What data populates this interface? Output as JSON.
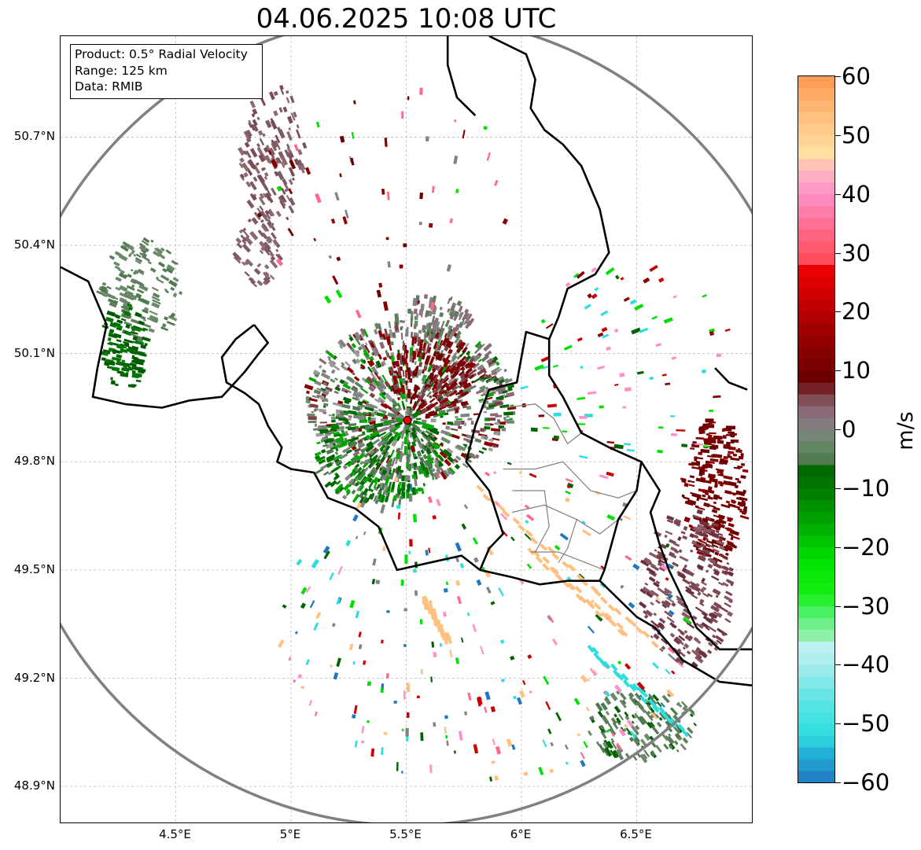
{
  "title": "04.06.2025 10:08 UTC",
  "info_box": {
    "product": "Product: 0.5° Radial Velocity",
    "range": "Range: 125 km",
    "data": "Data: RMIB"
  },
  "map": {
    "lon_range": [
      4.0,
      7.0
    ],
    "lat_range": [
      48.8,
      50.98
    ],
    "radar_site": {
      "lon": 5.505,
      "lat": 49.915,
      "color": "#e8000b"
    },
    "range_ring_km": 125,
    "lat_ticks": [
      {
        "value": 50.7,
        "label": "50.7°N"
      },
      {
        "value": 50.4,
        "label": "50.4°N"
      },
      {
        "value": 50.1,
        "label": "50.1°N"
      },
      {
        "value": 49.8,
        "label": "49.8°N"
      },
      {
        "value": 49.5,
        "label": "49.5°N"
      },
      {
        "value": 49.2,
        "label": "49.2°N"
      },
      {
        "value": 48.9,
        "label": "48.9°N"
      }
    ],
    "lon_ticks": [
      {
        "value": 4.5,
        "label": "4.5°E"
      },
      {
        "value": 5.0,
        "label": "5°E"
      },
      {
        "value": 5.5,
        "label": "5.5°E"
      },
      {
        "value": 6.0,
        "label": "6°E"
      },
      {
        "value": 6.5,
        "label": "6.5°E"
      }
    ],
    "grid": true,
    "colors": {
      "border": "#000000",
      "inner_border": "#808080",
      "ring": "#808080",
      "grid": "#bbbbbb"
    }
  },
  "colorbar": {
    "unit": "m/s",
    "min": -60,
    "max": 60,
    "ticks": [
      {
        "value": 60,
        "label": "60"
      },
      {
        "value": 50,
        "label": "50"
      },
      {
        "value": 40,
        "label": "40"
      },
      {
        "value": 30,
        "label": "30"
      },
      {
        "value": 20,
        "label": "20"
      },
      {
        "value": 10,
        "label": "10"
      },
      {
        "value": 0,
        "label": "0"
      },
      {
        "value": -10,
        "label": "−10"
      },
      {
        "value": -20,
        "label": "−20"
      },
      {
        "value": -30,
        "label": "−30"
      },
      {
        "value": -40,
        "label": "−40"
      },
      {
        "value": -50,
        "label": "−50"
      },
      {
        "value": -60,
        "label": "−60"
      }
    ],
    "stops": [
      {
        "v": -60,
        "c": "#1f78c0"
      },
      {
        "v": -55,
        "c": "#22b0d6"
      },
      {
        "v": -52,
        "c": "#2edede"
      },
      {
        "v": -46,
        "c": "#5ee4e4"
      },
      {
        "v": -40,
        "c": "#a8ecec"
      },
      {
        "v": -36,
        "c": "#c4f2f2"
      },
      {
        "v": -35.5,
        "c": "#98f0b0"
      },
      {
        "v": -32,
        "c": "#5cf07a"
      },
      {
        "v": -28,
        "c": "#14f014"
      },
      {
        "v": -22,
        "c": "#00e000"
      },
      {
        "v": -16,
        "c": "#00a800"
      },
      {
        "v": -10,
        "c": "#007800"
      },
      {
        "v": -6,
        "c": "#006400"
      },
      {
        "v": -5.5,
        "c": "#4f7a4f"
      },
      {
        "v": -2,
        "c": "#6a8a6a"
      },
      {
        "v": 0,
        "c": "#828282"
      },
      {
        "v": 3,
        "c": "#8a6a78"
      },
      {
        "v": 6,
        "c": "#7d4048"
      },
      {
        "v": 8,
        "c": "#6a0000"
      },
      {
        "v": 14,
        "c": "#8a0000"
      },
      {
        "v": 22,
        "c": "#c80000"
      },
      {
        "v": 28,
        "c": "#f00000"
      },
      {
        "v": 28.5,
        "c": "#ff4a5a"
      },
      {
        "v": 34,
        "c": "#ff6a8a"
      },
      {
        "v": 40,
        "c": "#ff90c8"
      },
      {
        "v": 44,
        "c": "#ffb6c0"
      },
      {
        "v": 47,
        "c": "#ffe0a0"
      },
      {
        "v": 53,
        "c": "#ffc080"
      },
      {
        "v": 60,
        "c": "#ff9a50"
      }
    ]
  },
  "echo_regions": [
    {
      "lon": 5.52,
      "lat": 49.97,
      "rlon": 0.45,
      "rlat": 0.22,
      "n": 900,
      "palette": [
        "#828282",
        "#8a6a78",
        "#6a8a6a",
        "#5f7d5f",
        "#7d4048",
        "#8a0000",
        "#006400",
        "#00a800",
        "#9a9a9a"
      ]
    },
    {
      "lon": 5.62,
      "lat": 50.04,
      "rlon": 0.18,
      "rlat": 0.12,
      "n": 220,
      "palette": [
        "#7a0000",
        "#8a0000",
        "#6a0000",
        "#7d4048"
      ]
    },
    {
      "lon": 5.38,
      "lat": 49.82,
      "rlon": 0.28,
      "rlat": 0.14,
      "n": 380,
      "palette": [
        "#006400",
        "#00a800",
        "#007800",
        "#4f7a4f",
        "#828282"
      ]
    },
    {
      "lon": 5.62,
      "lat": 50.2,
      "rlon": 0.17,
      "rlat": 0.06,
      "n": 90,
      "palette": [
        "#828282",
        "#8a6a78",
        "#5f7d5f"
      ]
    },
    {
      "lon": 4.92,
      "lat": 50.65,
      "rlon": 0.14,
      "rlat": 0.2,
      "n": 160,
      "palette": [
        "#7d5a64",
        "#8a6a70",
        "#7a4a55"
      ]
    },
    {
      "lon": 4.86,
      "lat": 50.38,
      "rlon": 0.1,
      "rlat": 0.1,
      "n": 70,
      "palette": [
        "#7d5a64",
        "#8a6a70"
      ]
    },
    {
      "lon": 4.35,
      "lat": 50.28,
      "rlon": 0.18,
      "rlat": 0.14,
      "n": 140,
      "palette": [
        "#5f7d5f",
        "#6a8a6a",
        "#4f7a4f"
      ]
    },
    {
      "lon": 4.28,
      "lat": 50.12,
      "rlon": 0.1,
      "rlat": 0.12,
      "n": 120,
      "palette": [
        "#006400",
        "#007800",
        "#005a00"
      ]
    },
    {
      "lon": 6.84,
      "lat": 49.72,
      "rlon": 0.14,
      "rlat": 0.2,
      "n": 260,
      "palette": [
        "#6a0000",
        "#7a0000",
        "#8a0000",
        "#700000"
      ]
    },
    {
      "lon": 6.72,
      "lat": 49.45,
      "rlon": 0.2,
      "rlat": 0.22,
      "n": 260,
      "palette": [
        "#7d4048",
        "#8a5a64",
        "#7a4a55",
        "#6a3040"
      ]
    },
    {
      "lon": 6.52,
      "lat": 49.07,
      "rlon": 0.24,
      "rlat": 0.1,
      "n": 160,
      "palette": [
        "#5f7d5f",
        "#6a8a6a",
        "#4f7a4f",
        "#006400"
      ]
    },
    {
      "lon": 5.85,
      "lat": 49.35,
      "rlon": 0.9,
      "rlat": 0.45,
      "n": 260,
      "palette": [
        "#ff90c8",
        "#2edede",
        "#00e000",
        "#c80000",
        "#ffc080",
        "#ff6a8a",
        "#006400",
        "#1f78c0",
        "#828282"
      ]
    },
    {
      "lon": 6.45,
      "lat": 50.05,
      "rlon": 0.5,
      "rlat": 0.3,
      "n": 90,
      "palette": [
        "#00e000",
        "#ff90c8",
        "#c80000",
        "#2edede",
        "#8a0000",
        "#006400"
      ]
    },
    {
      "lon": 5.4,
      "lat": 50.55,
      "rlon": 0.55,
      "rlat": 0.35,
      "n": 60,
      "palette": [
        "#8a0000",
        "#6a0000",
        "#ff6a8a",
        "#00e000",
        "#828282"
      ]
    }
  ],
  "streaks": [
    {
      "from": [
        5.82,
        49.72
      ],
      "to": [
        6.58,
        49.3
      ],
      "color": "#ffc080"
    },
    {
      "from": [
        6.05,
        49.55
      ],
      "to": [
        6.45,
        49.32
      ],
      "color": "#ffc080"
    },
    {
      "from": [
        6.3,
        49.28
      ],
      "to": [
        6.7,
        49.05
      ],
      "color": "#2edede"
    },
    {
      "from": [
        5.58,
        49.42
      ],
      "to": [
        5.68,
        49.3
      ],
      "color": "#ffc080"
    }
  ]
}
